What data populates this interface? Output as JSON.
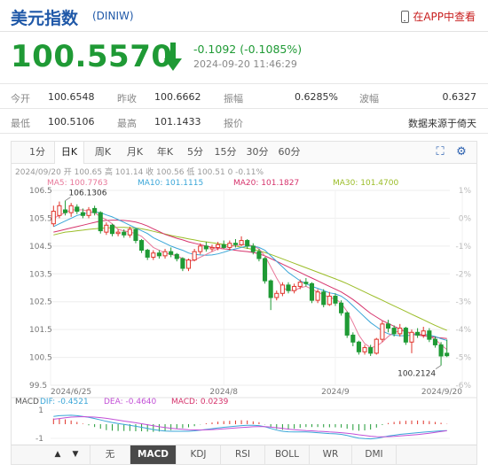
{
  "header": {
    "title": "美元指数",
    "code": "(DINIW)",
    "app_link": "在APP中查看"
  },
  "quote": {
    "price": "100.5570",
    "change": "-0.1092 (-0.1085%)",
    "time": "2024-09-20 11:46:29",
    "color_down": "#1f9a35"
  },
  "stats": [
    [
      {
        "label": "今开",
        "value": "100.6548"
      },
      {
        "label": "昨收",
        "value": "100.6662"
      },
      {
        "label": "振幅",
        "value": "0.6285%"
      },
      {
        "label": "波幅",
        "value": "0.6327"
      }
    ],
    [
      {
        "label": "最低",
        "value": "100.5106"
      },
      {
        "label": "最高",
        "value": "101.1433"
      },
      {
        "label": "报价",
        "value": ""
      },
      {
        "label": "",
        "value": "数据来源于倚天"
      }
    ]
  ],
  "tabs": [
    "1分",
    "日K",
    "周K",
    "月K",
    "年K",
    "5分",
    "15分",
    "30分",
    "60分"
  ],
  "active_tab": "日K",
  "tools": [
    "expand-icon",
    "settings-icon"
  ],
  "bottom_tabs": [
    "无",
    "MACD",
    "KDJ",
    "RSI",
    "BOLL",
    "WR",
    "DMI"
  ],
  "active_bottom_tab": "MACD",
  "chart_data": {
    "type": "candlestick",
    "info_line": {
      "date": "2024/09/20",
      "open": "开 100.65",
      "high": "高 101.14",
      "close": "收 100.56",
      "low": "低 100.51",
      "change": "0 -0.11%"
    },
    "ma_legend": [
      {
        "name": "MA5: 100.7763",
        "color": "#e8789a"
      },
      {
        "name": "MA10: 101.1115",
        "color": "#3aa6d8"
      },
      {
        "name": "MA20: 101.1827",
        "color": "#d6336c"
      },
      {
        "name": "MA30: 101.4700",
        "color": "#9bbd28"
      }
    ],
    "y_ticks": [
      "106.5",
      "105.5",
      "104.5",
      "103.5",
      "102.5",
      "101.5",
      "100.5",
      "99.5"
    ],
    "y_ticks_pct": [
      "1%",
      "0%",
      "-1%",
      "-2%",
      "-3%",
      "-4%",
      "-5%",
      "-6%"
    ],
    "ylim": [
      99.5,
      106.5
    ],
    "x_ticks": [
      "2024/6/25",
      "2024/8",
      "2024/9",
      "2024/9/20"
    ],
    "annotations": {
      "high": "106.1306",
      "low": "100.2124"
    },
    "candles": [
      [
        105.3,
        105.75,
        105.95,
        105.2
      ],
      [
        105.6,
        105.95,
        106.1,
        105.5
      ],
      [
        105.8,
        105.7,
        106.13,
        105.6
      ],
      [
        105.7,
        105.95,
        106.05,
        105.55
      ],
      [
        105.9,
        105.75,
        106.0,
        105.65
      ],
      [
        105.7,
        105.6,
        105.85,
        105.5
      ],
      [
        105.6,
        105.8,
        105.9,
        105.5
      ],
      [
        105.85,
        105.7,
        105.95,
        105.6
      ],
      [
        105.7,
        105.05,
        105.75,
        104.95
      ],
      [
        105.0,
        105.25,
        105.35,
        104.9
      ],
      [
        105.25,
        104.95,
        105.3,
        104.85
      ],
      [
        104.95,
        105.0,
        105.1,
        104.85
      ],
      [
        105.0,
        104.9,
        105.1,
        104.8
      ],
      [
        104.9,
        105.1,
        105.2,
        104.8
      ],
      [
        105.1,
        104.7,
        105.15,
        104.6
      ],
      [
        104.7,
        104.35,
        104.75,
        104.25
      ],
      [
        104.35,
        104.1,
        104.4,
        104.0
      ],
      [
        104.1,
        104.25,
        104.35,
        104.0
      ],
      [
        104.25,
        104.15,
        104.35,
        104.05
      ],
      [
        104.15,
        104.3,
        104.4,
        104.05
      ],
      [
        104.3,
        104.2,
        104.45,
        104.1
      ],
      [
        104.2,
        104.05,
        104.25,
        103.95
      ],
      [
        104.05,
        103.7,
        104.1,
        103.6
      ],
      [
        103.7,
        104.0,
        104.05,
        103.6
      ],
      [
        104.0,
        104.3,
        104.4,
        103.95
      ],
      [
        104.3,
        104.5,
        104.6,
        104.2
      ],
      [
        104.5,
        104.4,
        104.65,
        104.3
      ],
      [
        104.4,
        104.45,
        104.55,
        104.3
      ],
      [
        104.45,
        104.55,
        104.65,
        104.35
      ],
      [
        104.55,
        104.45,
        104.7,
        104.4
      ],
      [
        104.45,
        104.6,
        104.7,
        104.35
      ],
      [
        104.6,
        104.55,
        104.75,
        104.45
      ],
      [
        104.55,
        104.7,
        104.85,
        104.5
      ],
      [
        104.7,
        104.5,
        104.75,
        104.4
      ],
      [
        104.5,
        104.3,
        104.6,
        104.2
      ],
      [
        104.3,
        104.05,
        104.4,
        103.95
      ],
      [
        104.05,
        103.25,
        104.1,
        103.15
      ],
      [
        103.25,
        102.65,
        103.3,
        102.2
      ],
      [
        102.65,
        102.8,
        102.9,
        102.55
      ],
      [
        102.8,
        103.1,
        103.2,
        102.7
      ],
      [
        103.1,
        102.9,
        103.2,
        102.8
      ],
      [
        102.9,
        103.05,
        103.15,
        102.8
      ],
      [
        103.05,
        103.2,
        103.3,
        102.95
      ],
      [
        103.2,
        103.15,
        103.35,
        103.05
      ],
      [
        103.15,
        102.55,
        103.2,
        102.45
      ],
      [
        102.55,
        102.85,
        102.95,
        102.45
      ],
      [
        102.85,
        102.4,
        102.95,
        102.3
      ],
      [
        102.4,
        102.7,
        102.85,
        102.35
      ],
      [
        102.7,
        102.45,
        102.8,
        102.35
      ],
      [
        102.45,
        102.1,
        102.55,
        102.0
      ],
      [
        102.1,
        101.3,
        102.15,
        101.2
      ],
      [
        101.3,
        101.05,
        101.4,
        100.9
      ],
      [
        101.05,
        100.7,
        101.1,
        100.6
      ],
      [
        100.7,
        100.85,
        100.95,
        100.6
      ],
      [
        100.85,
        100.65,
        100.95,
        100.55
      ],
      [
        100.65,
        101.15,
        101.2,
        100.6
      ],
      [
        101.15,
        101.7,
        101.8,
        101.05
      ],
      [
        101.7,
        101.55,
        101.85,
        101.4
      ],
      [
        101.55,
        101.35,
        101.65,
        101.25
      ],
      [
        101.35,
        101.55,
        101.7,
        101.25
      ],
      [
        101.55,
        101.05,
        101.6,
        100.95
      ],
      [
        101.05,
        101.4,
        101.5,
        100.65
      ],
      [
        101.4,
        101.3,
        101.55,
        101.2
      ],
      [
        101.3,
        101.45,
        101.6,
        101.2
      ],
      [
        101.45,
        101.15,
        101.55,
        101.05
      ],
      [
        101.15,
        100.95,
        101.25,
        100.85
      ],
      [
        100.95,
        100.55,
        101.05,
        100.21
      ],
      [
        100.65,
        100.56,
        101.14,
        100.51
      ]
    ],
    "ma5": [
      105.5,
      105.6,
      105.7,
      105.8,
      105.8,
      105.8,
      105.75,
      105.7,
      105.55,
      105.45,
      105.3,
      105.1,
      105.05,
      105.0,
      104.95,
      104.85,
      104.65,
      104.45,
      104.35,
      104.25,
      104.2,
      104.15,
      104.05,
      103.95,
      104.0,
      104.1,
      104.2,
      104.3,
      104.4,
      104.45,
      104.5,
      104.5,
      104.55,
      104.55,
      104.5,
      104.4,
      104.15,
      103.75,
      103.35,
      103.0,
      102.9,
      102.9,
      103.0,
      103.05,
      102.95,
      102.85,
      102.75,
      102.65,
      102.6,
      102.45,
      102.15,
      101.75,
      101.3,
      101.0,
      100.85,
      100.9,
      101.05,
      101.25,
      101.4,
      101.45,
      101.45,
      101.35,
      101.35,
      101.3,
      101.25,
      101.15,
      100.95,
      100.78
    ],
    "ma10": [
      105.2,
      105.3,
      105.4,
      105.5,
      105.6,
      105.65,
      105.7,
      105.72,
      105.7,
      105.62,
      105.55,
      105.45,
      105.35,
      105.25,
      105.15,
      105.05,
      104.95,
      104.8,
      104.7,
      104.6,
      104.5,
      104.42,
      104.35,
      104.25,
      104.2,
      104.18,
      104.17,
      104.18,
      104.22,
      104.28,
      104.35,
      104.4,
      104.45,
      104.5,
      104.5,
      104.45,
      104.35,
      104.15,
      103.95,
      103.75,
      103.55,
      103.4,
      103.25,
      103.15,
      103.05,
      102.98,
      102.9,
      102.82,
      102.78,
      102.7,
      102.55,
      102.35,
      102.15,
      101.95,
      101.75,
      101.6,
      101.45,
      101.35,
      101.3,
      101.28,
      101.28,
      101.3,
      101.32,
      101.33,
      101.3,
      101.25,
      101.17,
      101.11
    ],
    "ma20": [
      105.0,
      105.05,
      105.1,
      105.15,
      105.2,
      105.25,
      105.3,
      105.35,
      105.4,
      105.42,
      105.43,
      105.43,
      105.42,
      105.4,
      105.36,
      105.3,
      105.22,
      105.12,
      105.02,
      104.92,
      104.85,
      104.78,
      104.72,
      104.65,
      104.6,
      104.55,
      104.5,
      104.45,
      104.42,
      104.4,
      104.38,
      104.35,
      104.32,
      104.3,
      104.27,
      104.22,
      104.15,
      104.05,
      103.95,
      103.85,
      103.75,
      103.65,
      103.55,
      103.45,
      103.35,
      103.25,
      103.15,
      103.05,
      102.95,
      102.85,
      102.72,
      102.58,
      102.42,
      102.25,
      102.08,
      101.95,
      101.82,
      101.72,
      101.62,
      101.52,
      101.42,
      101.35,
      101.3,
      101.27,
      101.25,
      101.22,
      101.2,
      101.18
    ],
    "ma30": [
      104.9,
      104.95,
      105.0,
      105.02,
      105.05,
      105.07,
      105.1,
      105.12,
      105.14,
      105.15,
      105.16,
      105.17,
      105.17,
      105.16,
      105.15,
      105.12,
      105.08,
      105.03,
      104.98,
      104.93,
      104.88,
      104.84,
      104.8,
      104.76,
      104.72,
      104.68,
      104.65,
      104.62,
      104.59,
      104.56,
      104.53,
      104.5,
      104.46,
      104.42,
      104.38,
      104.33,
      104.27,
      104.2,
      104.12,
      104.04,
      103.96,
      103.88,
      103.8,
      103.72,
      103.64,
      103.56,
      103.48,
      103.4,
      103.32,
      103.24,
      103.15,
      103.05,
      102.95,
      102.85,
      102.75,
      102.65,
      102.55,
      102.45,
      102.35,
      102.25,
      102.15,
      102.05,
      101.95,
      101.85,
      101.75,
      101.65,
      101.56,
      101.47
    ],
    "macd": {
      "legend": [
        {
          "name": "MACD",
          "color": "#555555"
        },
        {
          "name": "DIF: -0.4521",
          "color": "#3aa6d8"
        },
        {
          "name": "DEA: -0.4640",
          "color": "#c24fd6"
        },
        {
          "name": "MACD: 0.0239",
          "color": "#d6336c"
        }
      ],
      "y_ticks": [
        "1",
        "-1"
      ],
      "ylim": [
        -1.5,
        1.5
      ],
      "dif": [
        0.55,
        0.6,
        0.62,
        0.63,
        0.6,
        0.55,
        0.48,
        0.4,
        0.3,
        0.2,
        0.12,
        0.05,
        -0.02,
        -0.08,
        -0.15,
        -0.22,
        -0.3,
        -0.38,
        -0.44,
        -0.48,
        -0.5,
        -0.5,
        -0.5,
        -0.5,
        -0.47,
        -0.42,
        -0.37,
        -0.32,
        -0.27,
        -0.22,
        -0.18,
        -0.14,
        -0.1,
        -0.08,
        -0.08,
        -0.1,
        -0.18,
        -0.3,
        -0.42,
        -0.5,
        -0.54,
        -0.55,
        -0.55,
        -0.55,
        -0.57,
        -0.6,
        -0.63,
        -0.66,
        -0.68,
        -0.72,
        -0.8,
        -0.9,
        -0.98,
        -1.02,
        -1.04,
        -1.0,
        -0.92,
        -0.84,
        -0.78,
        -0.72,
        -0.68,
        -0.64,
        -0.6,
        -0.56,
        -0.53,
        -0.5,
        -0.47,
        -0.45
      ],
      "dea": [
        0.35,
        0.4,
        0.45,
        0.5,
        0.52,
        0.53,
        0.52,
        0.5,
        0.46,
        0.41,
        0.35,
        0.29,
        0.22,
        0.16,
        0.1,
        0.03,
        -0.04,
        -0.11,
        -0.18,
        -0.24,
        -0.29,
        -0.33,
        -0.36,
        -0.39,
        -0.4,
        -0.41,
        -0.4,
        -0.38,
        -0.36,
        -0.33,
        -0.3,
        -0.27,
        -0.24,
        -0.21,
        -0.18,
        -0.17,
        -0.17,
        -0.2,
        -0.25,
        -0.3,
        -0.35,
        -0.39,
        -0.42,
        -0.45,
        -0.47,
        -0.5,
        -0.52,
        -0.55,
        -0.57,
        -0.6,
        -0.64,
        -0.69,
        -0.75,
        -0.8,
        -0.85,
        -0.88,
        -0.89,
        -0.88,
        -0.86,
        -0.83,
        -0.8,
        -0.77,
        -0.73,
        -0.69,
        -0.64,
        -0.58,
        -0.52,
        -0.46
      ]
    }
  }
}
